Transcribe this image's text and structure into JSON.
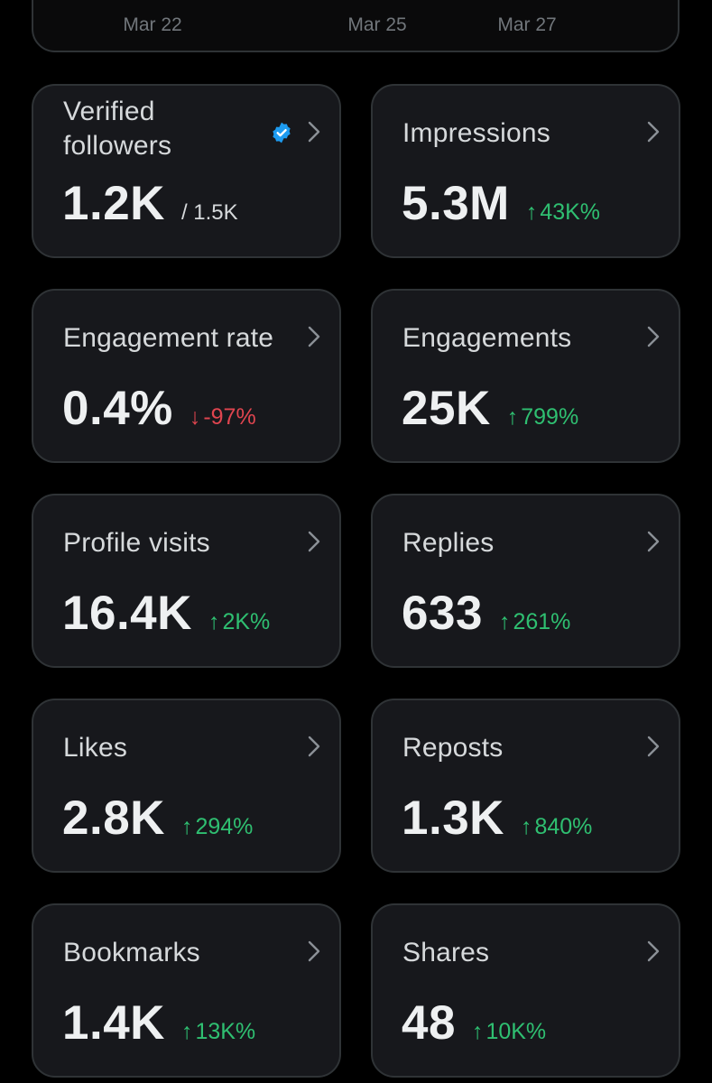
{
  "chart": {
    "x_ticks": [
      "Mar 22",
      "Mar 25",
      "Mar 27"
    ]
  },
  "colors": {
    "background": "#000000",
    "card_background": "#17181c",
    "card_border": "#2f3336",
    "positive": "#2fbf71",
    "negative": "#e0454f",
    "verified_badge": "#1d9bf0"
  },
  "metrics": [
    {
      "title": "Verified followers",
      "value": "1.2K",
      "sub": "/ 1.5K",
      "icon": "verified-badge-icon"
    },
    {
      "title": "Impressions",
      "value": "5.3M",
      "arrow": "↑",
      "change": "43K%",
      "direction": "up"
    },
    {
      "title": "Engagement rate",
      "value": "0.4%",
      "arrow": "↓",
      "change": "-97%",
      "direction": "down"
    },
    {
      "title": "Engagements",
      "value": "25K",
      "arrow": "↑",
      "change": "799%",
      "direction": "up"
    },
    {
      "title": "Profile visits",
      "value": "16.4K",
      "arrow": "↑",
      "change": "2K%",
      "direction": "up"
    },
    {
      "title": "Replies",
      "value": "633",
      "arrow": "↑",
      "change": "261%",
      "direction": "up"
    },
    {
      "title": "Likes",
      "value": "2.8K",
      "arrow": "↑",
      "change": "294%",
      "direction": "up"
    },
    {
      "title": "Reposts",
      "value": "1.3K",
      "arrow": "↑",
      "change": "840%",
      "direction": "up"
    },
    {
      "title": "Bookmarks",
      "value": "1.4K",
      "arrow": "↑",
      "change": "13K%",
      "direction": "up"
    },
    {
      "title": "Shares",
      "value": "48",
      "arrow": "↑",
      "change": "10K%",
      "direction": "up"
    }
  ]
}
